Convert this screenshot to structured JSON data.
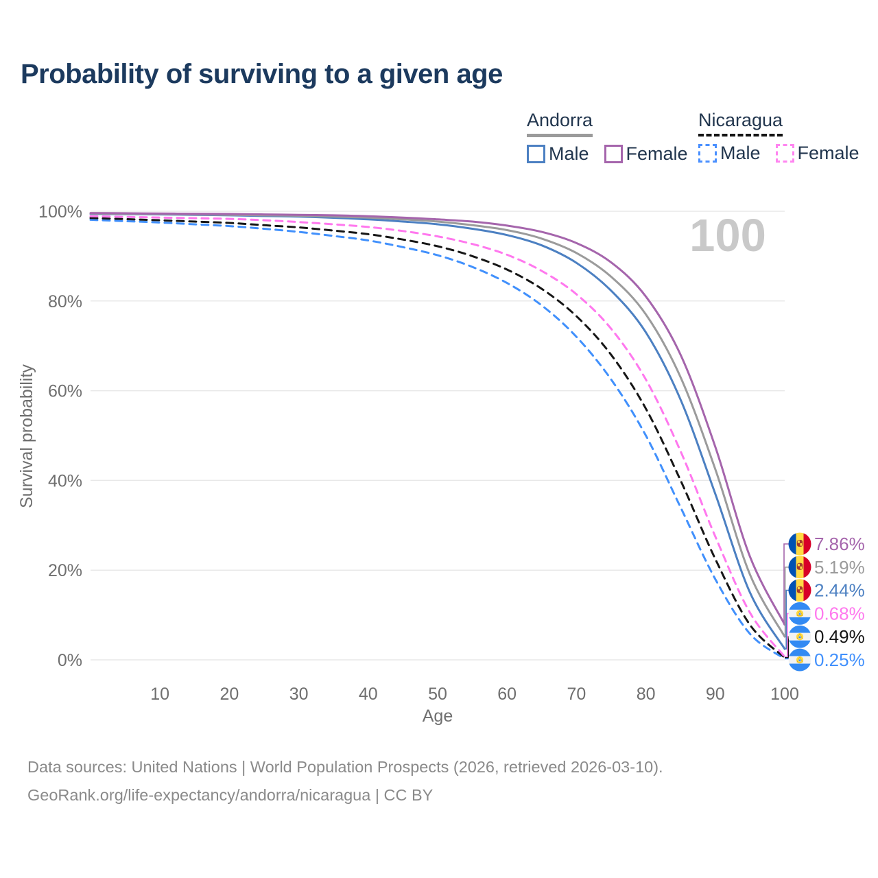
{
  "title": "Probability of surviving to a given age",
  "legend": {
    "groups": [
      {
        "id": "andorra",
        "name": "Andorra",
        "underline": "solid",
        "underline_color": "#9b9b9b",
        "items": [
          {
            "label": "Male",
            "color": "#4c80c2",
            "style": "solid"
          },
          {
            "label": "Female",
            "color": "#a565ac",
            "style": "solid"
          }
        ]
      },
      {
        "id": "nicaragua",
        "name": "Nicaragua",
        "underline": "dashed",
        "underline_color": "#141414",
        "items": [
          {
            "label": "Male",
            "color": "#4a90ff",
            "style": "dashed"
          },
          {
            "label": "Female",
            "color": "#ff85f0",
            "style": "dashed"
          }
        ]
      }
    ]
  },
  "chart_data": {
    "type": "line",
    "title": "Probability of surviving to a given age",
    "xlabel": "Age",
    "ylabel": "Survival probability",
    "xlim": [
      0,
      100
    ],
    "ylim": [
      0,
      100
    ],
    "grid": true,
    "legend_position": "top-right",
    "age_marker": "100",
    "x_ticks": [
      10,
      20,
      30,
      40,
      50,
      60,
      70,
      80,
      90,
      100
    ],
    "y_ticks": [
      {
        "value": 0,
        "label": "0%"
      },
      {
        "value": 20,
        "label": "20%"
      },
      {
        "value": 40,
        "label": "40%"
      },
      {
        "value": 60,
        "label": "60%"
      },
      {
        "value": 80,
        "label": "80%"
      },
      {
        "value": 100,
        "label": "100%"
      }
    ],
    "x": [
      0,
      5,
      10,
      15,
      20,
      25,
      30,
      35,
      40,
      45,
      50,
      55,
      60,
      65,
      70,
      75,
      80,
      85,
      90,
      95,
      100
    ],
    "series": [
      {
        "name": "Nicaragua Male",
        "country": "nicaragua",
        "sex": "male",
        "color": "#4190fc",
        "line_style": "dashed",
        "end_label": "0.25%",
        "values": [
          98.1,
          97.8,
          97.5,
          97.1,
          96.7,
          96.1,
          95.4,
          94.5,
          93.5,
          92.0,
          90.2,
          87.6,
          84.0,
          79.0,
          72.0,
          62.5,
          50.0,
          34.0,
          18.0,
          5.8,
          0.25
        ]
      },
      {
        "name": "Nicaragua Total",
        "country": "nicaragua",
        "sex": "both",
        "color": "#161616",
        "line_style": "dashed",
        "end_label": "0.49%",
        "values": [
          98.5,
          98.25,
          98.0,
          97.7,
          97.4,
          96.9,
          96.4,
          95.7,
          94.9,
          93.7,
          92.2,
          90.0,
          87.0,
          82.7,
          76.6,
          68.0,
          56.0,
          40.0,
          22.5,
          7.8,
          0.49
        ]
      },
      {
        "name": "Nicaragua Female",
        "country": "nicaragua",
        "sex": "female",
        "color": "#ff78ee",
        "line_style": "dashed",
        "end_label": "0.68%",
        "values": [
          98.9,
          98.75,
          98.6,
          98.45,
          98.3,
          98.0,
          97.6,
          97.1,
          96.5,
          95.6,
          94.4,
          92.7,
          90.3,
          86.7,
          81.5,
          73.8,
          62.5,
          46.5,
          27.5,
          10.5,
          0.68
        ]
      },
      {
        "name": "Andorra Male",
        "country": "andorra",
        "sex": "male",
        "color": "#4c80c2",
        "line_style": "solid",
        "end_label": "2.44%",
        "values": [
          99.4,
          99.35,
          99.3,
          99.2,
          99.1,
          98.95,
          98.8,
          98.55,
          98.2,
          97.7,
          97.1,
          96.1,
          94.7,
          92.4,
          88.5,
          82.3,
          73.0,
          58.0,
          37.0,
          15.0,
          2.44
        ]
      },
      {
        "name": "Andorra Total",
        "country": "andorra",
        "sex": "both",
        "color": "#9b9b9b",
        "line_style": "solid",
        "end_label": "5.19%",
        "values": [
          99.5,
          99.45,
          99.4,
          99.3,
          99.2,
          99.1,
          99.0,
          98.8,
          98.6,
          98.2,
          97.7,
          96.9,
          95.8,
          93.9,
          90.7,
          85.4,
          77.0,
          63.0,
          42.5,
          19.0,
          5.19
        ]
      },
      {
        "name": "Andorra Female",
        "country": "andorra",
        "sex": "female",
        "color": "#a565ac",
        "line_style": "solid",
        "end_label": "7.86%",
        "values": [
          99.6,
          99.55,
          99.5,
          99.45,
          99.4,
          99.3,
          99.2,
          99.1,
          98.9,
          98.6,
          98.2,
          97.7,
          96.8,
          95.4,
          92.9,
          88.6,
          81.0,
          68.0,
          47.5,
          23.0,
          7.86
        ]
      }
    ]
  },
  "footer": {
    "line1": "Data sources: United Nations | World Population Prospects (2026, retrieved 2026-03-10).",
    "line2": "GeoRank.org/life-expectancy/andorra/nicaragua | CC BY"
  },
  "colors": {
    "title": "#1c3a5e",
    "axis_text": "#6f6f6f",
    "gridline": "#e8e8e8",
    "watermark": "#c9c9c9",
    "footer_text": "#8a8a8a",
    "legend_text": "#22364e"
  }
}
